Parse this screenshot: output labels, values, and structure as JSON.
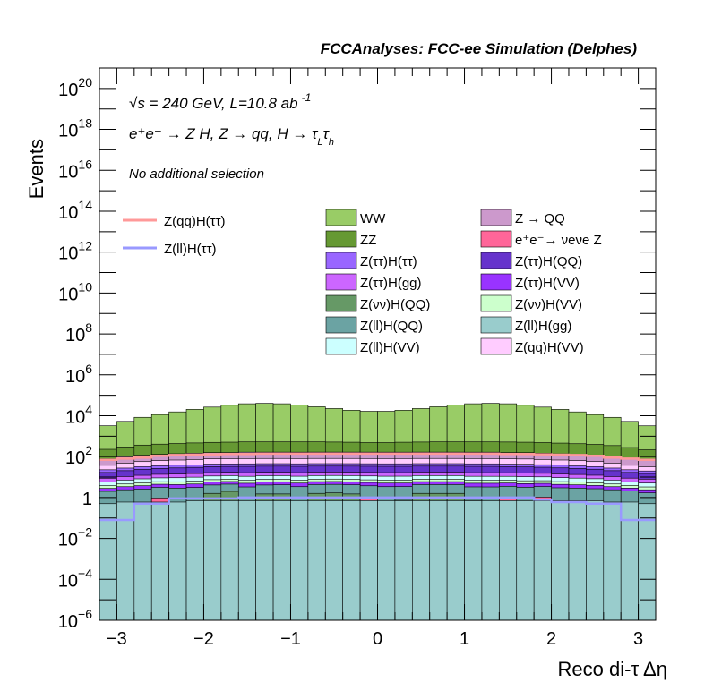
{
  "chart_data": {
    "type": "bar",
    "title": "FCCAnalyses: FCC-ee Simulation (Delphes)",
    "xlabel": "Reco di-τ Δη",
    "ylabel": "Events",
    "xlim": [
      -3.2,
      3.2
    ],
    "ylim": [
      1e-06,
      1e+21
    ],
    "yscale": "log",
    "grid": false,
    "legend_position": "center",
    "x_ticks": [
      "−3",
      "−2",
      "−1",
      "0",
      "1",
      "2",
      "3"
    ],
    "y_ticks": [
      {
        "base": "10",
        "exp": "−6",
        "value": 1e-06
      },
      {
        "base": "10",
        "exp": "−4",
        "value": 0.0001
      },
      {
        "base": "10",
        "exp": "−2",
        "value": 0.01
      },
      {
        "base": "1",
        "exp": "",
        "value": 1
      },
      {
        "base": "10",
        "exp": "2",
        "value": 100.0
      },
      {
        "base": "10",
        "exp": "4",
        "value": 10000.0
      },
      {
        "base": "10",
        "exp": "6",
        "value": 1000000.0
      },
      {
        "base": "10",
        "exp": "8",
        "value": 100000000.0
      },
      {
        "base": "10",
        "exp": "10",
        "value": 10000000000.0
      },
      {
        "base": "10",
        "exp": "12",
        "value": 1000000000000.0
      },
      {
        "base": "10",
        "exp": "14",
        "value": 100000000000000.0
      },
      {
        "base": "10",
        "exp": "16",
        "value": 1e+16
      },
      {
        "base": "10",
        "exp": "18",
        "value": 1e+18
      },
      {
        "base": "10",
        "exp": "20",
        "value": 1e+20
      }
    ],
    "annotations": {
      "energy": "√s = 240 GeV, L=10.8 ab",
      "energy_exp": "-1",
      "process": "e⁺e⁻ → Z H, Z → qq, H → τ",
      "process_sub1": "L",
      "process_mid": "τ",
      "process_sub2": "h",
      "selection": "No additional selection"
    },
    "bins_edges": [
      -3.2,
      -3.0,
      -2.8,
      -2.6,
      -2.4,
      -2.2,
      -2.0,
      -1.8,
      -1.6,
      -1.4,
      -1.2,
      -1.0,
      -0.8,
      -0.6,
      -0.4,
      -0.2,
      0.0,
      0.2,
      0.4,
      0.6,
      0.8,
      1.0,
      1.2,
      1.4,
      1.6,
      1.8,
      2.0,
      2.2,
      2.4,
      2.6,
      2.8,
      3.0,
      3.2
    ],
    "stack_series": [
      {
        "name": "Z(ll)H(gg)",
        "color": "#99cccc",
        "values": [
          0.5,
          0.6,
          0.6,
          0.6,
          0.6,
          0.7,
          0.7,
          0.7,
          0.7,
          0.7,
          0.7,
          0.7,
          0.7,
          0.7,
          0.7,
          0.7,
          0.7,
          0.7,
          0.7,
          0.7,
          0.7,
          0.7,
          0.7,
          0.7,
          0.7,
          0.7,
          0.7,
          0.7,
          0.7,
          0.6,
          0.6,
          0.5
        ]
      },
      {
        "name": "e⁺e⁻→ νeνe Z",
        "color": "#ff6699",
        "values": [
          0,
          0,
          0,
          0.35,
          0,
          0,
          0,
          0,
          0,
          0,
          0,
          0,
          0,
          0,
          0,
          0.35,
          0,
          0,
          0,
          0,
          0,
          0,
          0,
          0.35,
          0,
          0.35,
          0,
          0,
          0,
          0,
          0,
          0
        ]
      },
      {
        "name": "Z(νν)H(QQ)",
        "color": "#669966",
        "values": [
          0,
          0,
          0,
          0,
          0,
          0,
          0.9,
          1.3,
          0,
          0.8,
          0.8,
          0,
          0.9,
          1.0,
          0.8,
          0,
          0,
          0.03,
          0.9,
          0.9,
          0.9,
          0.02,
          0,
          0,
          0,
          0,
          0,
          0,
          0,
          0,
          0,
          0
        ]
      },
      {
        "name": "Z(ll)H(QQ)",
        "color": "#6ba3a3",
        "values": [
          1.5,
          1.8,
          2.0,
          2.2,
          2.3,
          2.4,
          2.5,
          2.5,
          2.6,
          2.6,
          2.7,
          2.7,
          2.7,
          2.7,
          2.7,
          2.7,
          2.7,
          2.7,
          2.7,
          2.7,
          2.7,
          2.6,
          2.6,
          2.5,
          2.5,
          2.4,
          2.3,
          2.2,
          2.0,
          1.8,
          1.5,
          1.2
        ]
      },
      {
        "name": "Z(ττ)H(VV)",
        "color": "#9933ff",
        "values": [
          0.8,
          1.0,
          1.2,
          1.3,
          1.4,
          1.5,
          1.6,
          1.6,
          1.7,
          1.7,
          1.7,
          1.7,
          1.7,
          1.7,
          1.7,
          1.7,
          1.7,
          1.7,
          1.7,
          1.7,
          1.7,
          1.7,
          1.7,
          1.6,
          1.6,
          1.5,
          1.4,
          1.3,
          1.2,
          1.0,
          0.8,
          0.7
        ]
      },
      {
        "name": "Z(νν)H(VV)",
        "color": "#ccffcc",
        "values": [
          1.0,
          1.2,
          1.4,
          1.5,
          1.6,
          1.7,
          1.8,
          1.8,
          1.9,
          1.9,
          1.9,
          1.9,
          1.9,
          1.9,
          1.9,
          1.9,
          1.9,
          1.9,
          1.9,
          1.9,
          1.9,
          1.9,
          1.9,
          1.8,
          1.8,
          1.7,
          1.6,
          1.5,
          1.4,
          1.2,
          1.0,
          0.9
        ]
      },
      {
        "name": "Z(ll)H(VV)",
        "color": "#ccffff",
        "values": [
          2.0,
          2.5,
          3.0,
          3.2,
          3.4,
          3.6,
          3.8,
          3.9,
          4.0,
          4.0,
          4.0,
          4.0,
          4.0,
          4.0,
          4.0,
          4.0,
          4.0,
          4.0,
          4.0,
          4.0,
          4.0,
          4.0,
          4.0,
          3.9,
          3.8,
          3.6,
          3.4,
          3.2,
          3.0,
          2.5,
          2.0,
          1.8
        ]
      },
      {
        "name": "Z(ττ)H(gg)",
        "color": "#cc66ff",
        "values": [
          3.0,
          3.5,
          4.0,
          4.5,
          4.8,
          5.0,
          5.2,
          5.4,
          5.5,
          5.5,
          5.5,
          5.5,
          5.5,
          5.5,
          5.5,
          5.5,
          5.5,
          5.5,
          5.5,
          5.5,
          5.5,
          5.5,
          5.5,
          5.4,
          5.2,
          5.0,
          4.8,
          4.5,
          4.0,
          3.5,
          3.0,
          2.8
        ]
      },
      {
        "name": "Z(ττ)H(QQ)",
        "color": "#6633cc",
        "values": [
          8,
          10,
          12,
          13,
          14,
          15,
          16,
          16,
          17,
          17,
          17,
          17,
          17,
          17,
          17,
          17,
          17,
          17,
          17,
          17,
          17,
          17,
          17,
          16,
          16,
          15,
          14,
          13,
          12,
          10,
          8,
          7
        ]
      },
      {
        "name": "Z(ττ)H(ττ)",
        "color": "#9966ff",
        "values": [
          6,
          7,
          8,
          9,
          10,
          10,
          11,
          11,
          11,
          11,
          11,
          11,
          11,
          11,
          11,
          11,
          11,
          11,
          11,
          11,
          11,
          11,
          11,
          11,
          11,
          10,
          10,
          9,
          8,
          7,
          6,
          5
        ]
      },
      {
        "name": "Z(qq)H(VV)",
        "color": "#ffccff",
        "values": [
          15,
          20,
          25,
          28,
          30,
          32,
          34,
          35,
          36,
          36,
          36,
          36,
          36,
          36,
          36,
          36,
          36,
          36,
          36,
          36,
          36,
          36,
          36,
          35,
          34,
          32,
          30,
          28,
          25,
          20,
          15,
          12
        ]
      },
      {
        "name": "Z → QQ",
        "color": "#cc99cc",
        "values": [
          40,
          50,
          60,
          65,
          70,
          75,
          80,
          80,
          85,
          85,
          85,
          85,
          85,
          85,
          85,
          85,
          85,
          85,
          85,
          85,
          85,
          85,
          85,
          80,
          80,
          75,
          70,
          65,
          60,
          50,
          40,
          35
        ]
      },
      {
        "name": "ZZ",
        "color": "#669933",
        "values": [
          150,
          200,
          250,
          280,
          300,
          320,
          340,
          350,
          360,
          360,
          360,
          360,
          360,
          350,
          340,
          320,
          320,
          340,
          350,
          360,
          360,
          360,
          360,
          360,
          350,
          340,
          320,
          300,
          280,
          250,
          200,
          150
        ]
      },
      {
        "name": "WW",
        "color": "#99cc66",
        "values": [
          3000,
          5000,
          8000,
          11000,
          15000,
          20000,
          26000,
          32000,
          38000,
          40000,
          38000,
          33000,
          27000,
          22000,
          18000,
          16000,
          16000,
          18000,
          22000,
          27000,
          33000,
          38000,
          40000,
          38000,
          32000,
          26000,
          20000,
          15000,
          11000,
          8000,
          5000,
          3000
        ]
      }
    ],
    "line_series": [
      {
        "name": "Z(qq)H(ττ)",
        "color": "#ff9999",
        "values": [
          70,
          80,
          90,
          110,
          120,
          125,
          130,
          135,
          135,
          140,
          140,
          140,
          140,
          140,
          140,
          140,
          140,
          140,
          140,
          140,
          140,
          140,
          140,
          135,
          135,
          130,
          125,
          120,
          110,
          90,
          80,
          70
        ]
      },
      {
        "name": "Z(ll)H(ττ)",
        "color": "#9999ff",
        "values": [
          0.08,
          0.08,
          0.5,
          0.5,
          0.9,
          0.9,
          0.9,
          0.9,
          1.0,
          1.0,
          1.0,
          1.0,
          1.0,
          1.0,
          1.0,
          1.0,
          1.0,
          1.0,
          1.0,
          1.0,
          1.0,
          1.0,
          1.0,
          1.0,
          1.0,
          0.8,
          0.6,
          0.6,
          0.5,
          0.5,
          0.08,
          0.08
        ]
      }
    ],
    "legend": {
      "lines": [
        {
          "label": "Z(qq)H(ττ)",
          "color": "#ff9999"
        },
        {
          "label": "Z(ll)H(ττ)",
          "color": "#9999ff"
        }
      ],
      "boxes": [
        {
          "label": "WW",
          "color": "#99cc66"
        },
        {
          "label": "Z → QQ",
          "color": "#cc99cc"
        },
        {
          "label": "ZZ",
          "color": "#669933"
        },
        {
          "label": "e⁺e⁻→ νeνe Z",
          "color": "#ff6699"
        },
        {
          "label": "Z(ττ)H(ττ)",
          "color": "#9966ff"
        },
        {
          "label": "Z(ττ)H(QQ)",
          "color": "#6633cc"
        },
        {
          "label": "Z(ττ)H(gg)",
          "color": "#cc66ff"
        },
        {
          "label": "Z(ττ)H(VV)",
          "color": "#9933ff"
        },
        {
          "label": "Z(νν)H(QQ)",
          "color": "#669966"
        },
        {
          "label": "Z(νν)H(VV)",
          "color": "#ccffcc"
        },
        {
          "label": "Z(ll)H(QQ)",
          "color": "#6ba3a3"
        },
        {
          "label": "Z(ll)H(gg)",
          "color": "#99cccc"
        },
        {
          "label": "Z(ll)H(VV)",
          "color": "#ccffff"
        },
        {
          "label": "Z(qq)H(VV)",
          "color": "#ffccff"
        }
      ]
    }
  }
}
